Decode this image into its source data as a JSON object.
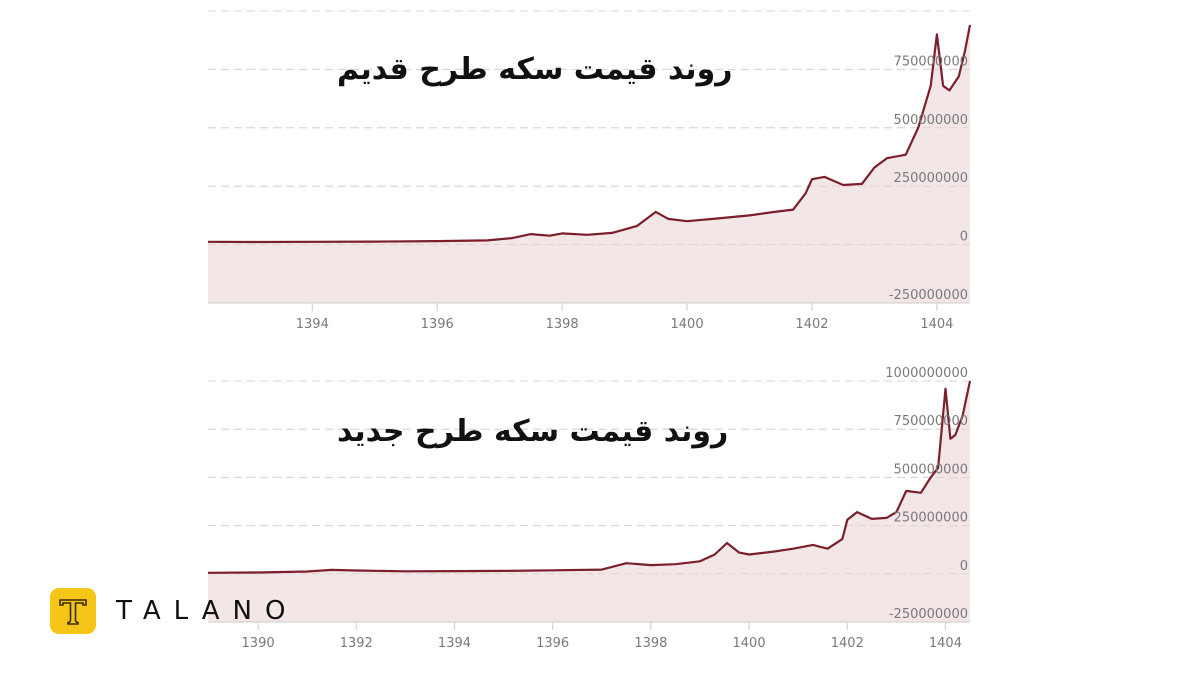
{
  "titles": {
    "top": "روند قیمت سکه طرح قدیم",
    "bottom": "روند قیمت سکه طرح جدید"
  },
  "brand": {
    "name": "TALANO",
    "color": "#f5c518"
  },
  "colors": {
    "line": "#7a1f2b",
    "fill": "#f2e6e7",
    "grid": "#d9d9d9",
    "axis": "#cccccc"
  },
  "chart_data": [
    {
      "type": "area",
      "title": "روند قیمت سکه طرح قدیم",
      "xlabel": "",
      "ylabel": "",
      "x_ticks": [
        1394,
        1396,
        1398,
        1400,
        1402,
        1404
      ],
      "y_ticks": [
        -250000000,
        0,
        250000000,
        500000000,
        750000000
      ],
      "xlim": [
        1392.33,
        1404.53
      ],
      "ylim": [
        -250000000,
        1000000000
      ],
      "grid": true,
      "legend": null,
      "x": [
        1392.33,
        1393,
        1394,
        1395,
        1396,
        1396.8,
        1397.2,
        1397.5,
        1397.8,
        1398.0,
        1398.4,
        1398.8,
        1399.2,
        1399.5,
        1399.7,
        1400.0,
        1400.5,
        1401.0,
        1401.4,
        1401.7,
        1401.9,
        1402.0,
        1402.2,
        1402.5,
        1402.8,
        1403.0,
        1403.2,
        1403.5,
        1403.7,
        1403.9,
        1404.0,
        1404.1,
        1404.2,
        1404.35,
        1404.45,
        1404.53
      ],
      "y": [
        12000000,
        11000000,
        12000000,
        13000000,
        15000000,
        18000000,
        28000000,
        45000000,
        38000000,
        48000000,
        42000000,
        50000000,
        80000000,
        140000000,
        110000000,
        100000000,
        112000000,
        125000000,
        140000000,
        150000000,
        220000000,
        280000000,
        290000000,
        255000000,
        260000000,
        330000000,
        370000000,
        385000000,
        500000000,
        680000000,
        900000000,
        680000000,
        660000000,
        720000000,
        830000000,
        940000000
      ]
    },
    {
      "type": "area",
      "title": "روند قیمت سکه طرح جدید",
      "xlabel": "",
      "ylabel": "",
      "x_ticks": [
        1390,
        1392,
        1394,
        1396,
        1398,
        1400,
        1402,
        1404
      ],
      "y_ticks": [
        -250000000,
        0,
        250000000,
        500000000,
        750000000,
        1000000000
      ],
      "xlim": [
        1388.98,
        1404.5
      ],
      "ylim": [
        -250000000,
        1000000000
      ],
      "grid": true,
      "legend": null,
      "x": [
        1388.98,
        1390,
        1391,
        1391.5,
        1392,
        1393,
        1394,
        1395,
        1396,
        1397,
        1397.5,
        1398.0,
        1398.5,
        1399.0,
        1399.3,
        1399.55,
        1399.8,
        1400.0,
        1400.5,
        1400.9,
        1401.3,
        1401.6,
        1401.9,
        1402.0,
        1402.2,
        1402.5,
        1402.8,
        1403.0,
        1403.2,
        1403.5,
        1403.7,
        1403.85,
        1404.0,
        1404.1,
        1404.2,
        1404.35,
        1404.5
      ],
      "y": [
        5000000,
        7000000,
        12000000,
        20000000,
        17000000,
        13000000,
        14000000,
        15000000,
        18000000,
        22000000,
        55000000,
        45000000,
        50000000,
        65000000,
        100000000,
        160000000,
        110000000,
        100000000,
        115000000,
        130000000,
        150000000,
        130000000,
        180000000,
        280000000,
        320000000,
        285000000,
        290000000,
        320000000,
        430000000,
        420000000,
        500000000,
        550000000,
        960000000,
        700000000,
        720000000,
        820000000,
        1000000000
      ]
    }
  ]
}
